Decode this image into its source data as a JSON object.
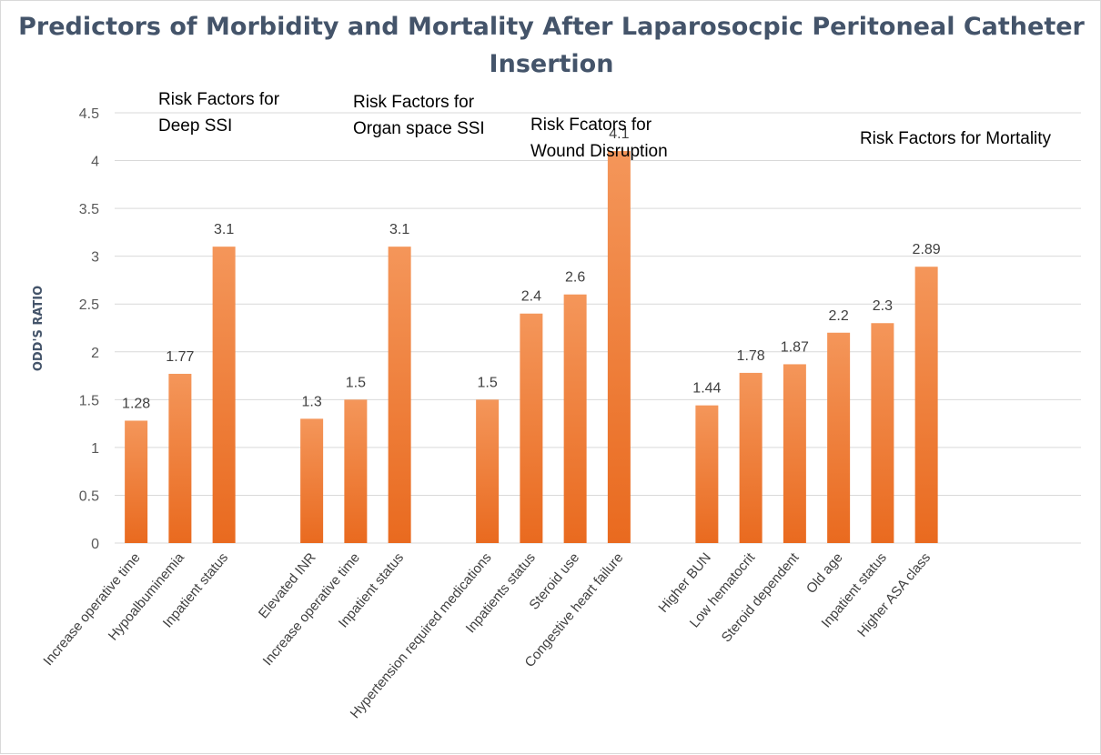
{
  "chart_data": {
    "type": "bar",
    "title": "Predictors of Morbidity and Mortality After Laparosocpic Peritoneal Catheter Insertion",
    "ylabel": "ODD'S RATIO",
    "xlabel": "",
    "ylim": [
      0,
      4.5
    ],
    "yticks": [
      "0",
      "0.5",
      "1",
      "1.5",
      "2",
      "2.5",
      "3",
      "3.5",
      "4",
      "4.5"
    ],
    "grid": true,
    "legend": "none",
    "bar_color_top": "#f4965a",
    "bar_color_bottom": "#e96a1f",
    "groups": [
      {
        "label_lines": [
          "Risk Factors for",
          "Deep SSI"
        ],
        "bars": [
          {
            "category": "Increase operative time",
            "value": 1.28,
            "label": "1.28"
          },
          {
            "category": "Hypoalbuminemia",
            "value": 1.77,
            "label": "1.77"
          },
          {
            "category": "Inpatient status",
            "value": 3.1,
            "label": "3.1"
          }
        ]
      },
      {
        "label_lines": [
          "Risk Factors for",
          "Organ space SSI"
        ],
        "bars": [
          {
            "category": "Elevated INR",
            "value": 1.3,
            "label": "1.3"
          },
          {
            "category": "Increase operative time",
            "value": 1.5,
            "label": "1.5"
          },
          {
            "category": "Inpatient status",
            "value": 3.1,
            "label": "3.1"
          }
        ]
      },
      {
        "label_lines": [
          "Risk Fcators for",
          "Wound Disruption"
        ],
        "bars": [
          {
            "category": "Hypertension required medications",
            "value": 1.5,
            "label": "1.5"
          },
          {
            "category": "Inpatients status",
            "value": 2.4,
            "label": "2.4"
          },
          {
            "category": "Steroid use",
            "value": 2.6,
            "label": "2.6"
          },
          {
            "category": "Congestive heart failure",
            "value": 4.1,
            "label": "4.1"
          }
        ]
      },
      {
        "label_lines": [
          "Risk Factors for Mortality"
        ],
        "bars": [
          {
            "category": "Higher BUN",
            "value": 1.44,
            "label": "1.44"
          },
          {
            "category": "Low hematocrit",
            "value": 1.78,
            "label": "1.78"
          },
          {
            "category": "Steroid dependent",
            "value": 1.87,
            "label": "1.87"
          },
          {
            "category": "Old age",
            "value": 2.2,
            "label": "2.2"
          },
          {
            "category": "Inpatient status",
            "value": 2.3,
            "label": "2.3"
          },
          {
            "category": "Higher ASA class",
            "value": 2.89,
            "label": "2.89"
          }
        ]
      }
    ]
  }
}
